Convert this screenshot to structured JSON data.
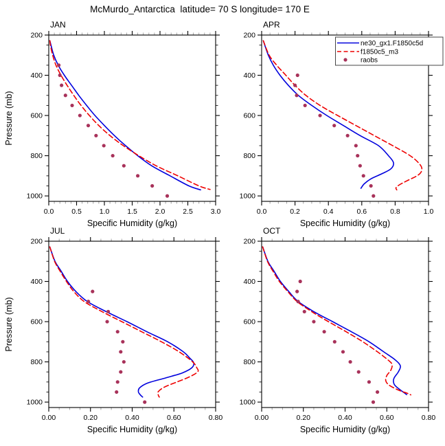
{
  "chart_data": {
    "type": "line",
    "title": "McMurdo_Antarctica  latitude= 70 S longitude= 170 E",
    "xlabel": "Specific Humidity (g/kg)",
    "ylabel": "Pressure (mb)",
    "y_axis": {
      "min": 200,
      "max": 1027,
      "inverted": true,
      "ticks": [
        200,
        400,
        600,
        800,
        1000
      ],
      "tick_labels": [
        "200",
        "400",
        "600",
        "800",
        "1000"
      ],
      "minor_step": 50
    },
    "colors": {
      "ne30": "#0000dd",
      "f1850": "#ee0000",
      "raobs": "#a8325a",
      "axis": "#000000",
      "minor_tick_tb": "#999999",
      "minor_tick_lr": "#111111",
      "legend_border": "#444444"
    },
    "legend": {
      "location": "top-right of APR panel",
      "entries": [
        {
          "label": "ne30_gx1.F1850c5d",
          "key": "ne30",
          "style": "solid"
        },
        {
          "label": "f1850c5_m3",
          "key": "f1850",
          "style": "dashed"
        },
        {
          "label": "raobs",
          "key": "raobs",
          "style": "dot"
        }
      ]
    },
    "panels": [
      {
        "month": "JAN",
        "show_ylabel": true,
        "show_legend": false,
        "x_axis": {
          "max": 3.0,
          "ticks": [
            0.0,
            0.5,
            1.0,
            1.5,
            2.0,
            2.5,
            3.0
          ],
          "tick_labels": [
            "0.0",
            "0.5",
            "1.0",
            "1.5",
            "2.0",
            "2.5",
            "3.0"
          ],
          "minor_step": 0.1
        },
        "series": [
          {
            "key": "ne30",
            "name": "ne30_gx1.F1850c5d",
            "style": "solid",
            "points": [
              [
                228,
                0.02
              ],
              [
                250,
                0.04
              ],
              [
                300,
                0.09
              ],
              [
                350,
                0.17
              ],
              [
                400,
                0.28
              ],
              [
                450,
                0.41
              ],
              [
                500,
                0.54
              ],
              [
                550,
                0.68
              ],
              [
                600,
                0.83
              ],
              [
                650,
                1.0
              ],
              [
                700,
                1.18
              ],
              [
                750,
                1.38
              ],
              [
                800,
                1.6
              ],
              [
                850,
                1.85
              ],
              [
                900,
                2.18
              ],
              [
                950,
                2.52
              ],
              [
                970,
                2.73
              ]
            ]
          },
          {
            "key": "f1850",
            "name": "f1850c5_m3",
            "style": "dashed",
            "points": [
              [
                228,
                0.02
              ],
              [
                250,
                0.03
              ],
              [
                300,
                0.07
              ],
              [
                350,
                0.13
              ],
              [
                400,
                0.22
              ],
              [
                450,
                0.33
              ],
              [
                500,
                0.45
              ],
              [
                550,
                0.58
              ],
              [
                600,
                0.73
              ],
              [
                650,
                0.9
              ],
              [
                700,
                1.1
              ],
              [
                750,
                1.34
              ],
              [
                800,
                1.62
              ],
              [
                850,
                1.93
              ],
              [
                900,
                2.32
              ],
              [
                950,
                2.7
              ],
              [
                968,
                2.9
              ]
            ]
          }
        ],
        "raobs": [
          [
            350,
            0.18
          ],
          [
            400,
            0.2
          ],
          [
            450,
            0.23
          ],
          [
            500,
            0.3
          ],
          [
            550,
            0.42
          ],
          [
            600,
            0.56
          ],
          [
            650,
            0.71
          ],
          [
            700,
            0.85
          ],
          [
            750,
            0.99
          ],
          [
            800,
            1.15
          ],
          [
            850,
            1.35
          ],
          [
            900,
            1.6
          ],
          [
            950,
            1.86
          ],
          [
            1000,
            2.13
          ]
        ]
      },
      {
        "month": "APR",
        "show_ylabel": false,
        "show_legend": true,
        "x_axis": {
          "max": 1.0,
          "ticks": [
            0.0,
            0.2,
            0.4,
            0.6,
            0.8,
            1.0
          ],
          "tick_labels": [
            "0.0",
            "0.2",
            "0.4",
            "0.6",
            "0.8",
            "1.0"
          ],
          "minor_step": 0.05
        },
        "series": [
          {
            "key": "ne30",
            "name": "ne30_gx1.F1850c5d",
            "style": "solid",
            "points": [
              [
                228,
                0.01
              ],
              [
                300,
                0.04
              ],
              [
                350,
                0.07
              ],
              [
                400,
                0.11
              ],
              [
                450,
                0.16
              ],
              [
                500,
                0.22
              ],
              [
                550,
                0.3
              ],
              [
                600,
                0.39
              ],
              [
                650,
                0.49
              ],
              [
                700,
                0.59
              ],
              [
                750,
                0.7
              ],
              [
                800,
                0.76
              ],
              [
                835,
                0.79
              ],
              [
                865,
                0.775
              ],
              [
                890,
                0.72
              ],
              [
                915,
                0.655
              ],
              [
                940,
                0.615
              ],
              [
                962,
                0.595
              ]
            ]
          },
          {
            "key": "f1850",
            "name": "f1850c5_m3",
            "style": "dashed",
            "points": [
              [
                228,
                0.01
              ],
              [
                300,
                0.045
              ],
              [
                350,
                0.09
              ],
              [
                400,
                0.145
              ],
              [
                450,
                0.2
              ],
              [
                500,
                0.265
              ],
              [
                550,
                0.35
              ],
              [
                600,
                0.455
              ],
              [
                650,
                0.565
              ],
              [
                700,
                0.675
              ],
              [
                750,
                0.785
              ],
              [
                800,
                0.89
              ],
              [
                840,
                0.945
              ],
              [
                868,
                0.96
              ],
              [
                895,
                0.94
              ],
              [
                925,
                0.87
              ],
              [
                945,
                0.825
              ],
              [
                960,
                0.805
              ],
              [
                970,
                0.81
              ]
            ]
          }
        ],
        "raobs": [
          [
            400,
            0.215
          ],
          [
            450,
            0.2
          ],
          [
            500,
            0.21
          ],
          [
            550,
            0.26
          ],
          [
            600,
            0.35
          ],
          [
            650,
            0.435
          ],
          [
            700,
            0.515
          ],
          [
            750,
            0.565
          ],
          [
            800,
            0.575
          ],
          [
            850,
            0.59
          ],
          [
            900,
            0.61
          ],
          [
            950,
            0.655
          ],
          [
            1000,
            0.67
          ]
        ]
      },
      {
        "month": "JUL",
        "show_ylabel": true,
        "show_legend": false,
        "x_axis": {
          "max": 0.8,
          "ticks": [
            0.0,
            0.2,
            0.4,
            0.6,
            0.8
          ],
          "tick_labels": [
            "0.00",
            "0.20",
            "0.40",
            "0.60",
            "0.80"
          ],
          "minor_step": 0.05
        },
        "series": [
          {
            "key": "ne30",
            "name": "ne30_gx1.F1850c5d",
            "style": "solid",
            "points": [
              [
                228,
                0.005
              ],
              [
                300,
                0.03
              ],
              [
                350,
                0.06
              ],
              [
                400,
                0.09
              ],
              [
                450,
                0.13
              ],
              [
                500,
                0.185
              ],
              [
                550,
                0.275
              ],
              [
                600,
                0.375
              ],
              [
                650,
                0.47
              ],
              [
                700,
                0.57
              ],
              [
                750,
                0.645
              ],
              [
                780,
                0.675
              ],
              [
                805,
                0.695
              ],
              [
                830,
                0.685
              ],
              [
                855,
                0.64
              ],
              [
                880,
                0.56
              ],
              [
                905,
                0.475
              ],
              [
                930,
                0.435
              ],
              [
                950,
                0.43
              ],
              [
                965,
                0.44
              ],
              [
                975,
                0.45
              ]
            ]
          },
          {
            "key": "f1850",
            "name": "f1850c5_m3",
            "style": "dashed",
            "points": [
              [
                228,
                0.005
              ],
              [
                300,
                0.028
              ],
              [
                350,
                0.055
              ],
              [
                400,
                0.085
              ],
              [
                450,
                0.12
              ],
              [
                500,
                0.17
              ],
              [
                550,
                0.255
              ],
              [
                600,
                0.35
              ],
              [
                650,
                0.445
              ],
              [
                700,
                0.54
              ],
              [
                750,
                0.625
              ],
              [
                800,
                0.69
              ],
              [
                830,
                0.71
              ],
              [
                848,
                0.715
              ],
              [
                872,
                0.68
              ],
              [
                900,
                0.615
              ],
              [
                925,
                0.555
              ],
              [
                948,
                0.525
              ],
              [
                965,
                0.525
              ],
              [
                975,
                0.53
              ]
            ]
          }
        ],
        "raobs": [
          [
            450,
            0.21
          ],
          [
            500,
            0.19
          ],
          [
            550,
            0.285
          ],
          [
            600,
            0.28
          ],
          [
            650,
            0.33
          ],
          [
            700,
            0.355
          ],
          [
            750,
            0.345
          ],
          [
            800,
            0.36
          ],
          [
            850,
            0.345
          ],
          [
            900,
            0.33
          ],
          [
            950,
            0.325
          ],
          [
            1000,
            0.46
          ]
        ]
      },
      {
        "month": "OCT",
        "show_ylabel": false,
        "show_legend": false,
        "x_axis": {
          "max": 0.8,
          "ticks": [
            0.0,
            0.2,
            0.4,
            0.6,
            0.8
          ],
          "tick_labels": [
            "0.00",
            "0.20",
            "0.40",
            "0.60",
            "0.80"
          ],
          "minor_step": 0.05
        },
        "series": [
          {
            "key": "ne30",
            "name": "ne30_gx1.F1850c5d",
            "style": "solid",
            "points": [
              [
                228,
                0.005
              ],
              [
                300,
                0.03
              ],
              [
                350,
                0.06
              ],
              [
                400,
                0.09
              ],
              [
                450,
                0.13
              ],
              [
                500,
                0.175
              ],
              [
                550,
                0.25
              ],
              [
                600,
                0.34
              ],
              [
                650,
                0.43
              ],
              [
                700,
                0.515
              ],
              [
                750,
                0.585
              ],
              [
                790,
                0.64
              ],
              [
                820,
                0.665
              ],
              [
                850,
                0.655
              ],
              [
                880,
                0.635
              ],
              [
                900,
                0.632
              ],
              [
                918,
                0.64
              ],
              [
                940,
                0.665
              ],
              [
                955,
                0.685
              ],
              [
                963,
                0.695
              ]
            ]
          },
          {
            "key": "f1850",
            "name": "f1850c5_m3",
            "style": "dashed",
            "points": [
              [
                228,
                0.005
              ],
              [
                300,
                0.028
              ],
              [
                350,
                0.055
              ],
              [
                400,
                0.085
              ],
              [
                450,
                0.125
              ],
              [
                500,
                0.17
              ],
              [
                550,
                0.24
              ],
              [
                600,
                0.32
              ],
              [
                650,
                0.405
              ],
              [
                700,
                0.485
              ],
              [
                750,
                0.555
              ],
              [
                790,
                0.605
              ],
              [
                812,
                0.625
              ],
              [
                840,
                0.62
              ],
              [
                868,
                0.6
              ],
              [
                893,
                0.595
              ],
              [
                915,
                0.61
              ],
              [
                940,
                0.655
              ],
              [
                955,
                0.695
              ],
              [
                964,
                0.715
              ]
            ]
          }
        ],
        "raobs": [
          [
            400,
            0.185
          ],
          [
            450,
            0.17
          ],
          [
            500,
            0.175
          ],
          [
            550,
            0.205
          ],
          [
            600,
            0.25
          ],
          [
            650,
            0.3
          ],
          [
            700,
            0.35
          ],
          [
            750,
            0.39
          ],
          [
            800,
            0.425
          ],
          [
            850,
            0.465
          ],
          [
            900,
            0.515
          ],
          [
            950,
            0.555
          ],
          [
            1000,
            0.535
          ]
        ]
      }
    ]
  }
}
